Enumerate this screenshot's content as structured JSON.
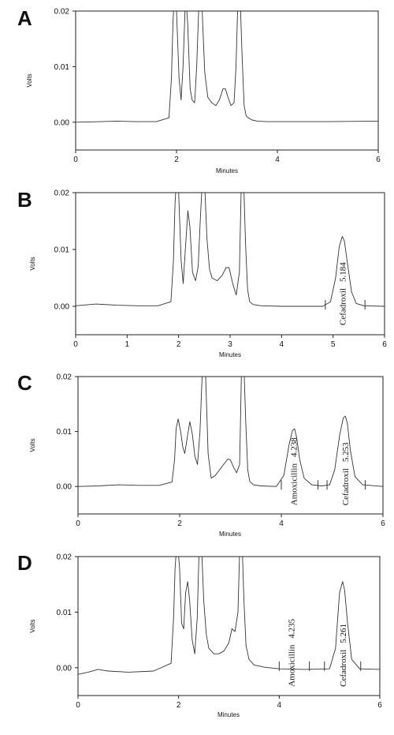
{
  "chart_data": [
    {
      "type": "line",
      "panel": "A",
      "xlabel": "Minutes",
      "ylabel": "Volts",
      "xlim": [
        0,
        6
      ],
      "ylim": [
        -0.005,
        0.02
      ],
      "xticks": [
        "0",
        "2",
        "4",
        "6"
      ],
      "yticks": [
        "0.00",
        "0.01",
        "0.02"
      ],
      "xtick_values": [
        0,
        2,
        4,
        6
      ],
      "ytick_values": [
        0.0,
        0.01,
        0.02
      ],
      "series": [
        {
          "x": [
            0,
            0.5,
            0.8,
            1.2,
            1.6,
            1.85,
            1.9,
            1.93,
            1.96,
            2.0,
            2.05,
            2.09,
            2.13,
            2.18,
            2.22,
            2.27,
            2.31,
            2.36,
            2.4,
            2.45,
            2.5,
            2.56,
            2.62,
            2.7,
            2.78,
            2.85,
            2.92,
            2.97,
            3.02,
            3.08,
            3.14,
            3.18,
            3.22,
            3.26,
            3.3,
            3.34,
            3.38,
            3.42,
            3.5,
            3.6,
            3.8,
            4.0,
            5.0,
            6.0
          ],
          "y": [
            0,
            0.0001,
            0.0002,
            0.0001,
            0.0001,
            0.0008,
            0.008,
            0.018,
            0.023,
            0.02,
            0.008,
            0.004,
            0.01,
            0.023,
            0.018,
            0.006,
            0.004,
            0.0035,
            0.01,
            0.023,
            0.022,
            0.009,
            0.0045,
            0.0035,
            0.003,
            0.004,
            0.006,
            0.006,
            0.0045,
            0.003,
            0.0035,
            0.01,
            0.023,
            0.023,
            0.012,
            0.003,
            0.0012,
            0.0008,
            0.0004,
            0.0002,
            0.0001,
            0.0001,
            0.0001,
            0.0002
          ]
        }
      ],
      "annotations": []
    },
    {
      "type": "line",
      "panel": "B",
      "xlabel": "Minutes",
      "ylabel": "Volts",
      "xlim": [
        0,
        6
      ],
      "ylim": [
        -0.005,
        0.02
      ],
      "xticks": [
        "0",
        "1",
        "2",
        "3",
        "4",
        "5",
        "6"
      ],
      "yticks": [
        "0.00",
        "0.01",
        "0.02"
      ],
      "xtick_values": [
        0,
        1,
        2,
        3,
        4,
        5,
        6
      ],
      "ytick_values": [
        0.0,
        0.01,
        0.02
      ],
      "series": [
        {
          "x": [
            0,
            0.4,
            0.8,
            1.2,
            1.6,
            1.85,
            1.9,
            1.93,
            1.96,
            2.0,
            2.05,
            2.09,
            2.13,
            2.18,
            2.22,
            2.27,
            2.33,
            2.38,
            2.42,
            2.46,
            2.5,
            2.55,
            2.6,
            2.65,
            2.75,
            2.85,
            2.92,
            2.98,
            3.05,
            3.12,
            3.18,
            3.22,
            3.26,
            3.3,
            3.34,
            3.38,
            3.45,
            3.6,
            4.0,
            4.8,
            4.95,
            5.05,
            5.12,
            5.18,
            5.22,
            5.28,
            5.36,
            5.45,
            5.6,
            6.0
          ],
          "y": [
            0.0001,
            0.0004,
            0.0002,
            0.0001,
            0.0001,
            0.0008,
            0.008,
            0.018,
            0.023,
            0.02,
            0.008,
            0.004,
            0.01,
            0.0168,
            0.014,
            0.006,
            0.0045,
            0.007,
            0.015,
            0.022,
            0.023,
            0.012,
            0.0065,
            0.005,
            0.0045,
            0.0055,
            0.0068,
            0.0068,
            0.004,
            0.002,
            0.006,
            0.023,
            0.023,
            0.011,
            0.003,
            0.0008,
            0.0003,
            0.0001,
            0.0,
            0.0,
            0.0008,
            0.005,
            0.0105,
            0.0123,
            0.0115,
            0.0075,
            0.0025,
            0.0005,
            0.0001,
            0.0
          ]
        }
      ],
      "annotations": [
        {
          "name": "Cefadroxil",
          "time": "5.184",
          "x": 5.184
        }
      ],
      "baseline_markers": [
        4.85,
        5.62
      ]
    },
    {
      "type": "line",
      "panel": "C",
      "xlabel": "Minutes",
      "ylabel": "Volts",
      "xlim": [
        0,
        6
      ],
      "ylim": [
        -0.005,
        0.02
      ],
      "xticks": [
        "0",
        "2",
        "4",
        "6"
      ],
      "yticks": [
        "0.00",
        "0.01",
        "0.02"
      ],
      "xtick_values": [
        0,
        2,
        4,
        6
      ],
      "ytick_values": [
        0.0,
        0.01,
        0.02
      ],
      "series": [
        {
          "x": [
            0,
            0.4,
            0.8,
            1.2,
            1.6,
            1.85,
            1.9,
            1.93,
            1.97,
            2.02,
            2.06,
            2.1,
            2.15,
            2.2,
            2.25,
            2.3,
            2.35,
            2.4,
            2.45,
            2.5,
            2.56,
            2.62,
            2.7,
            2.8,
            2.88,
            2.95,
            3.0,
            3.06,
            3.12,
            3.18,
            3.22,
            3.26,
            3.3,
            3.34,
            3.38,
            3.45,
            3.6,
            3.9,
            4.05,
            4.15,
            4.22,
            4.26,
            4.3,
            4.36,
            4.45,
            4.6,
            4.8,
            4.95,
            5.05,
            5.15,
            5.22,
            5.26,
            5.3,
            5.36,
            5.45,
            5.6,
            6.0
          ],
          "y": [
            0.0,
            0.0001,
            0.0003,
            0.0002,
            0.0002,
            0.0008,
            0.005,
            0.0105,
            0.0123,
            0.01,
            0.0072,
            0.006,
            0.009,
            0.0118,
            0.0095,
            0.0055,
            0.004,
            0.01,
            0.022,
            0.023,
            0.006,
            0.0015,
            0.002,
            0.0032,
            0.0042,
            0.005,
            0.0048,
            0.0035,
            0.0025,
            0.004,
            0.023,
            0.023,
            0.012,
            0.003,
            0.0009,
            0.0003,
            0.0001,
            0.0,
            0.002,
            0.0075,
            0.0102,
            0.0105,
            0.009,
            0.005,
            0.0015,
            0.0003,
            0.0001,
            0.0003,
            0.003,
            0.0095,
            0.0125,
            0.0128,
            0.0115,
            0.0065,
            0.0018,
            0.0003,
            0.0
          ]
        }
      ],
      "annotations": [
        {
          "name": "Amoxicillin",
          "time": "4.238",
          "x": 4.238
        },
        {
          "name": "Cefadroxil",
          "time": "5.253",
          "x": 5.253
        }
      ],
      "baseline_markers": [
        4.0,
        4.72,
        4.9,
        5.65
      ]
    },
    {
      "type": "line",
      "panel": "D",
      "xlabel": "Minutes",
      "ylabel": "Volts",
      "xlim": [
        0,
        6
      ],
      "ylim": [
        -0.005,
        0.02
      ],
      "xticks": [
        "0",
        "2",
        "4",
        "6"
      ],
      "yticks": [
        "0.00",
        "0.01",
        "0.02"
      ],
      "xtick_values": [
        0,
        2,
        4,
        6
      ],
      "ytick_values": [
        0.0,
        0.01,
        0.02
      ],
      "series": [
        {
          "x": [
            0,
            0.2,
            0.4,
            0.6,
            1.0,
            1.5,
            1.85,
            1.9,
            1.93,
            1.97,
            2.02,
            2.06,
            2.1,
            2.14,
            2.18,
            2.22,
            2.27,
            2.32,
            2.37,
            2.41,
            2.45,
            2.5,
            2.55,
            2.6,
            2.7,
            2.8,
            2.9,
            3.0,
            3.06,
            3.12,
            3.18,
            3.22,
            3.26,
            3.3,
            3.34,
            3.4,
            3.5,
            3.7,
            4.0,
            4.5,
            5.0,
            5.12,
            5.2,
            5.26,
            5.3,
            5.36,
            5.44,
            5.6,
            6.0
          ],
          "y": [
            -0.0012,
            -0.0008,
            -0.0003,
            -0.0006,
            -0.0008,
            -0.0006,
            0.0008,
            0.009,
            0.018,
            0.023,
            0.018,
            0.008,
            0.007,
            0.0135,
            0.0155,
            0.012,
            0.005,
            0.0025,
            0.009,
            0.022,
            0.023,
            0.012,
            0.006,
            0.0035,
            0.0025,
            0.0025,
            0.003,
            0.0045,
            0.007,
            0.0065,
            0.01,
            0.023,
            0.023,
            0.012,
            0.004,
            0.0015,
            0.0005,
            0.0001,
            -0.0002,
            -0.0003,
            -0.0002,
            0.0035,
            0.0135,
            0.0155,
            0.014,
            0.008,
            0.0015,
            -0.0002,
            -0.0003
          ]
        }
      ],
      "annotations": [
        {
          "name": "Amoxicillin",
          "time": "4.235",
          "x": 4.235
        },
        {
          "name": "Cefadroxil",
          "time": "5.261",
          "x": 5.261
        }
      ],
      "baseline_markers": [
        4.0,
        4.6,
        4.9,
        5.62
      ]
    }
  ]
}
